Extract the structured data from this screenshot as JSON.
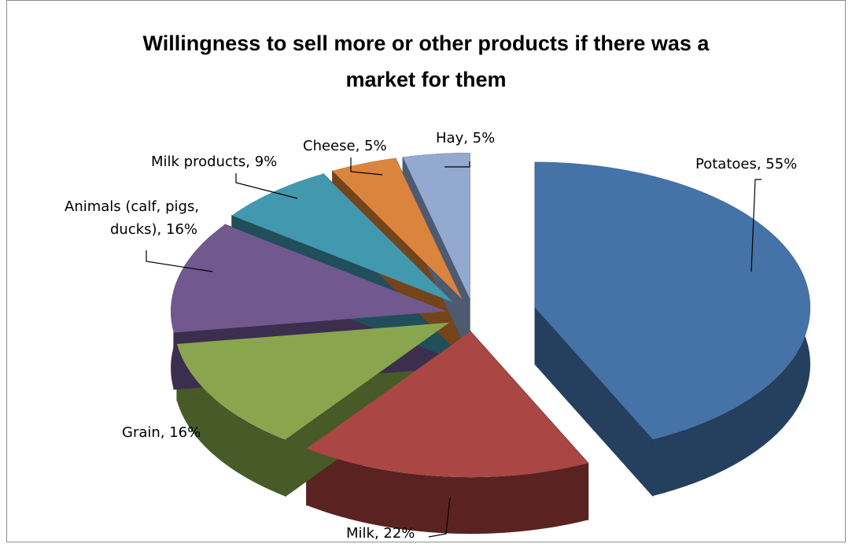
{
  "chart_data": {
    "type": "pie",
    "title_lines": [
      "Willingness to sell more or other products if there was a",
      "market for them"
    ],
    "slices": [
      {
        "label": "Potatoes",
        "value": 55,
        "display": "Potatoes, 55%",
        "color": "#4572a7",
        "side": "#253f5e"
      },
      {
        "label": "Milk",
        "value": 22,
        "display": "Milk, 22%",
        "color": "#aa4643",
        "side": "#5a2322"
      },
      {
        "label": "Grain",
        "value": 16,
        "display": "Grain, 16%",
        "color": "#89a54e",
        "side": "#475a27"
      },
      {
        "label": "Animals (calf, pigs, ducks)",
        "value": 16,
        "display_lines": [
          "Animals (calf, pigs,",
          "ducks), 16%"
        ],
        "color": "#71588f",
        "side": "#3c2e4e"
      },
      {
        "label": "Milk products",
        "value": 9,
        "display": "Milk products, 9%",
        "color": "#4198af",
        "side": "#204e5b"
      },
      {
        "label": "Cheese",
        "value": 5,
        "display": "Cheese, 5%",
        "color": "#db843d",
        "side": "#74441c"
      },
      {
        "label": "Hay",
        "value": 5,
        "display": "Hay, 5%",
        "color": "#93a9cf",
        "side": "#4d5a70"
      }
    ]
  }
}
